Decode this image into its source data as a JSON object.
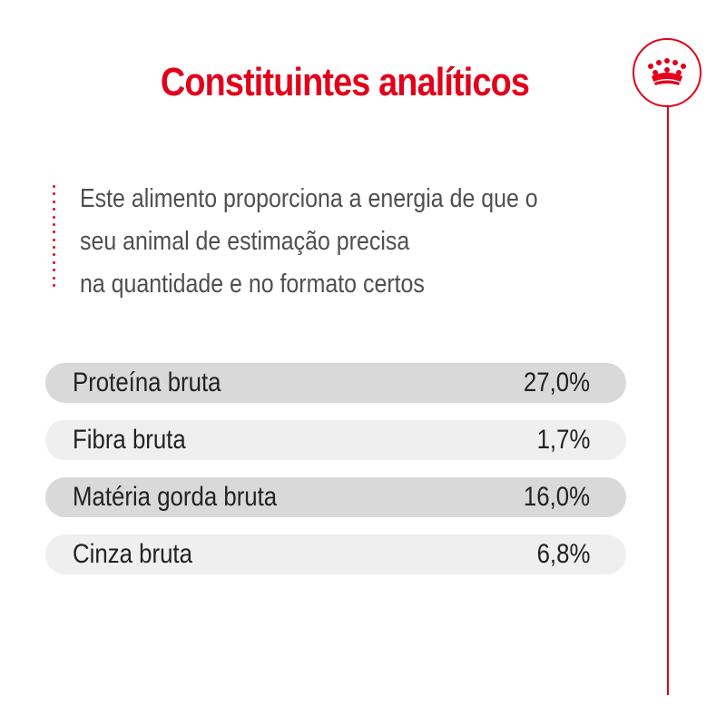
{
  "title": "Constituintes analíticos",
  "intro_lines": [
    "Este alimento proporciona a energia de que o",
    "seu animal de estimação precisa",
    "na quantidade e no formato certos"
  ],
  "constituents": [
    {
      "label": "Proteína bruta",
      "value": "27,0%"
    },
    {
      "label": "Fibra bruta",
      "value": "1,7%"
    },
    {
      "label": "Matéria gorda bruta",
      "value": "16,0%"
    },
    {
      "label": "Cinza bruta",
      "value": "6,8%"
    }
  ],
  "colors": {
    "accent": "#e2001a",
    "row_dark": "#d9d9d9",
    "row_light": "#efefef"
  },
  "icons": {
    "logo": "crown-icon"
  }
}
